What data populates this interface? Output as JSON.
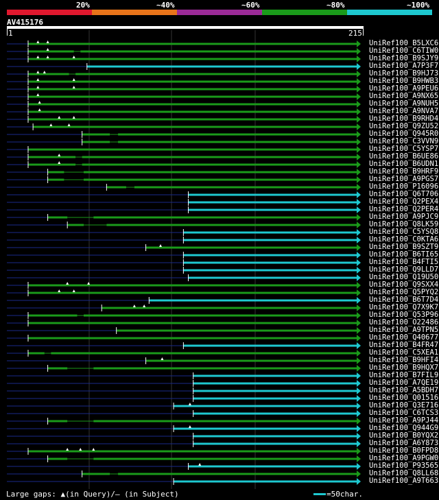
{
  "legend": {
    "segments": [
      {
        "label": "20%",
        "color": "#e0182e"
      },
      {
        "label": "~40%",
        "color": "#e8741a"
      },
      {
        "label": "~60%",
        "color": "#9a2a96"
      },
      {
        "label": "~80%",
        "color": "#1a9a1a"
      },
      {
        "label": "~100%",
        "color": "#1ec8d0"
      }
    ]
  },
  "query": {
    "title": "AV415176",
    "start": "1",
    "end": "215",
    "length": 215
  },
  "footer": {
    "gaps_text": "Large gaps: ▲(in Query)/― (in Subject)",
    "scale_text": "=50char."
  },
  "hits": [
    {
      "name": "UniRef100_B5LXC6",
      "start": 14,
      "color": "green",
      "tri": [
        20,
        26
      ]
    },
    {
      "name": "UniRef100_C6TIW0",
      "start": 14,
      "color": "green",
      "tri": [
        26
      ],
      "gap": [
        42,
        46
      ]
    },
    {
      "name": "UniRef100_B9SJY9",
      "start": 14,
      "color": "green",
      "tri": [
        20,
        26,
        42
      ]
    },
    {
      "name": "UniRef100_A7P3F7",
      "start": 50,
      "color": "cyan",
      "tri": []
    },
    {
      "name": "UniRef100_B9HJ73",
      "start": 14,
      "color": "green",
      "tri": [
        20,
        24
      ],
      "gap": [
        39,
        43
      ]
    },
    {
      "name": "UniRef100_B9HWB3",
      "start": 14,
      "color": "green",
      "tri": [
        20,
        42
      ]
    },
    {
      "name": "UniRef100_A9PEU6",
      "start": 14,
      "color": "green",
      "tri": [
        20,
        42
      ]
    },
    {
      "name": "UniRef100_A9NX65",
      "start": 14,
      "color": "green",
      "tri": [
        20
      ]
    },
    {
      "name": "UniRef100_A9NUH5",
      "start": 14,
      "color": "green",
      "tri": [
        21
      ]
    },
    {
      "name": "UniRef100_A9NVA7",
      "start": 14,
      "color": "green",
      "tri": [
        21
      ]
    },
    {
      "name": "UniRef100_B9RHD4",
      "start": 14,
      "color": "green",
      "tri": [
        33,
        42
      ]
    },
    {
      "name": "UniRef100_Q9ZU52",
      "start": 17,
      "color": "green",
      "tri": [
        28,
        39
      ]
    },
    {
      "name": "UniRef100_Q945R0",
      "start": 47,
      "color": "green",
      "tri": [],
      "gap": [
        64,
        69
      ]
    },
    {
      "name": "UniRef100_C3VVN9",
      "start": 47,
      "color": "green",
      "tri": [],
      "gap": [
        64,
        69
      ]
    },
    {
      "name": "UniRef100_C5YSP7",
      "start": 14,
      "color": "green",
      "tri": []
    },
    {
      "name": "UniRef100_B6UE86",
      "start": 14,
      "color": "green",
      "tri": [
        33
      ],
      "gap": [
        43,
        47
      ]
    },
    {
      "name": "UniRef100_B6UDN1",
      "start": 14,
      "color": "green",
      "tri": [
        33
      ],
      "gap": [
        43,
        47
      ]
    },
    {
      "name": "UniRef100_B9HRF9",
      "start": 26,
      "color": "green",
      "tri": [],
      "gap": [
        36,
        48
      ]
    },
    {
      "name": "UniRef100_A9PGS7",
      "start": 26,
      "color": "green",
      "tri": [],
      "gap": [
        36,
        48
      ]
    },
    {
      "name": "UniRef100_P16096",
      "start": 62,
      "color": "green",
      "tri": [],
      "gap": [
        74,
        79
      ]
    },
    {
      "name": "UniRef100_Q6T706",
      "start": 112,
      "color": "cyan",
      "tri": []
    },
    {
      "name": "UniRef100_Q2PEX4",
      "start": 112,
      "color": "cyan",
      "tri": []
    },
    {
      "name": "UniRef100_Q2PER4",
      "start": 112,
      "color": "cyan",
      "tri": []
    },
    {
      "name": "UniRef100_A9PJC9",
      "start": 26,
      "color": "green",
      "tri": [],
      "gap": [
        38,
        54
      ]
    },
    {
      "name": "UniRef100_Q8LK59",
      "start": 38,
      "color": "green",
      "tri": [],
      "gap": [
        48,
        62
      ]
    },
    {
      "name": "UniRef100_C5YSQ8",
      "start": 109,
      "color": "cyan",
      "tri": []
    },
    {
      "name": "UniRef100_C0KTA6",
      "start": 109,
      "color": "cyan",
      "tri": []
    },
    {
      "name": "UniRef100_B9SZT9",
      "start": 86,
      "color": "green",
      "tri": [
        95
      ]
    },
    {
      "name": "UniRef100_B6TI65",
      "start": 109,
      "color": "cyan",
      "tri": []
    },
    {
      "name": "UniRef100_B4FTI5",
      "start": 109,
      "color": "cyan",
      "tri": []
    },
    {
      "name": "UniRef100_Q9LLD7",
      "start": 109,
      "color": "cyan",
      "tri": []
    },
    {
      "name": "UniRef100_Q19U50",
      "start": 112,
      "color": "cyan",
      "tri": []
    },
    {
      "name": "UniRef100_Q9SXX4",
      "start": 14,
      "color": "green",
      "tri": [
        38,
        51
      ]
    },
    {
      "name": "UniRef100_Q5PYQ2",
      "start": 14,
      "color": "green",
      "tri": [
        33,
        42
      ]
    },
    {
      "name": "UniRef100_B6T7D4",
      "start": 88,
      "color": "cyan",
      "tri": []
    },
    {
      "name": "UniRef100_Q7X9K7",
      "start": 59,
      "color": "green",
      "tri": [
        79,
        85
      ]
    },
    {
      "name": "UniRef100_Q53P96",
      "start": 14,
      "color": "green",
      "tri": [],
      "gap": [
        44,
        48
      ]
    },
    {
      "name": "UniRef100_O22486",
      "start": 14,
      "color": "green",
      "tri": []
    },
    {
      "name": "UniRef100_A9TPN5",
      "start": 68,
      "color": "green",
      "tri": []
    },
    {
      "name": "UniRef100_Q40677",
      "start": 14,
      "color": "green",
      "tri": []
    },
    {
      "name": "UniRef100_B4FR47",
      "start": 109,
      "color": "cyan",
      "tri": []
    },
    {
      "name": "UniRef100_C5XEA1",
      "start": 14,
      "color": "green",
      "tri": [],
      "gap": [
        24,
        28
      ]
    },
    {
      "name": "UniRef100_B9HFI4",
      "start": 86,
      "color": "green",
      "tri": [
        96
      ]
    },
    {
      "name": "UniRef100_B9HQX7",
      "start": 26,
      "color": "green",
      "tri": [],
      "gap": [
        38,
        54
      ]
    },
    {
      "name": "UniRef100_B7FIL9",
      "start": 115,
      "color": "cyan",
      "tri": []
    },
    {
      "name": "UniRef100_A7QE19",
      "start": 115,
      "color": "cyan",
      "tri": []
    },
    {
      "name": "UniRef100_A5BDH7",
      "start": 115,
      "color": "cyan",
      "tri": []
    },
    {
      "name": "UniRef100_Q01516",
      "start": 115,
      "color": "cyan",
      "tri": []
    },
    {
      "name": "UniRef100_Q3E716",
      "start": 103,
      "color": "cyan",
      "tri": [
        113
      ]
    },
    {
      "name": "UniRef100_C6TCS3",
      "start": 115,
      "color": "cyan",
      "tri": []
    },
    {
      "name": "UniRef100_A9PJ44",
      "start": 26,
      "color": "green",
      "tri": [],
      "gap": [
        38,
        54
      ]
    },
    {
      "name": "UniRef100_Q944G9",
      "start": 103,
      "color": "cyan",
      "tri": [
        113
      ]
    },
    {
      "name": "UniRef100_B0YQX2",
      "start": 115,
      "color": "cyan",
      "tri": []
    },
    {
      "name": "UniRef100_A6Y873",
      "start": 115,
      "color": "cyan",
      "tri": []
    },
    {
      "name": "UniRef100_B0FPD8",
      "start": 14,
      "color": "green",
      "tri": [
        38,
        46,
        54
      ]
    },
    {
      "name": "UniRef100_A9PGW0",
      "start": 26,
      "color": "green",
      "tri": [],
      "gap": [
        38,
        54
      ]
    },
    {
      "name": "UniRef100_P93565",
      "start": 112,
      "color": "cyan",
      "tri": [
        119
      ]
    },
    {
      "name": "UniRef100_Q8LL68",
      "start": 47,
      "color": "green",
      "tri": [],
      "gap": [
        64,
        69
      ]
    },
    {
      "name": "UniRef100_A9T663",
      "start": 103,
      "color": "cyan",
      "tri": []
    }
  ]
}
